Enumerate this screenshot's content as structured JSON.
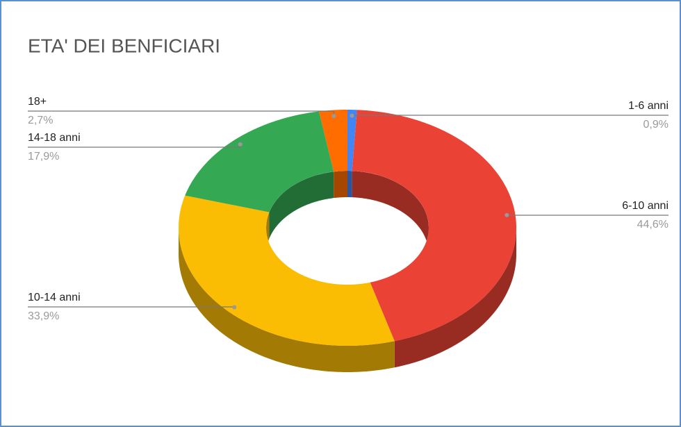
{
  "chart_data": {
    "type": "donut3d",
    "title": "ETA' DEI BENFICIARI",
    "categories": [
      "1-6 anni",
      "6-10 anni",
      "10-14 anni",
      "14-18 anni",
      "18+"
    ],
    "values": [
      0.9,
      44.6,
      33.9,
      17.9,
      2.7
    ],
    "value_labels": [
      "0,9%",
      "44,6%",
      "33,9%",
      "17,9%",
      "2,7%"
    ],
    "colors": [
      "#4285f4",
      "#ea4335",
      "#fbbc04",
      "#34a853",
      "#ff6d01"
    ]
  }
}
